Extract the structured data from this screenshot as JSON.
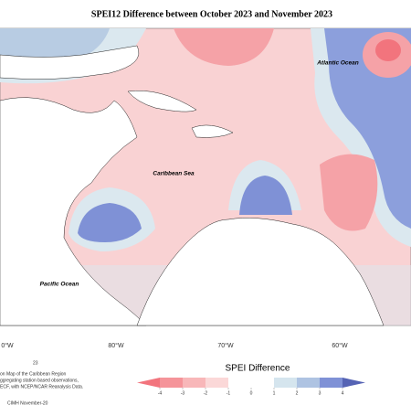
{
  "title": "SPEI12 Difference between October 2023 and November 2023",
  "map": {
    "ocean_labels": [
      "Atlantic Ocean",
      "Caribbean Sea",
      "Pacific Ocean"
    ],
    "longitude_labels": [
      "0°W",
      "80°W",
      "70°W",
      "60°W"
    ]
  },
  "colorbar": {
    "title": "SPEI Difference",
    "ticks": [
      -4,
      -3,
      -2,
      -1,
      0,
      1,
      2,
      3,
      4
    ],
    "colors": [
      "#f2747d",
      "#f5949a",
      "#f8b7b9",
      "#fbd8d8",
      "#ffffff",
      "#ffffff",
      "#d5e5ee",
      "#aec3e2",
      "#7f91d6",
      "#5563b4"
    ]
  },
  "footnotes": [
    "23",
    "on Map of the Caribbean Region",
    "ggregating station based observations,",
    "ECF, with NCEP/NCAR Reanalysis Data.",
    "CIMH November-20"
  ]
}
